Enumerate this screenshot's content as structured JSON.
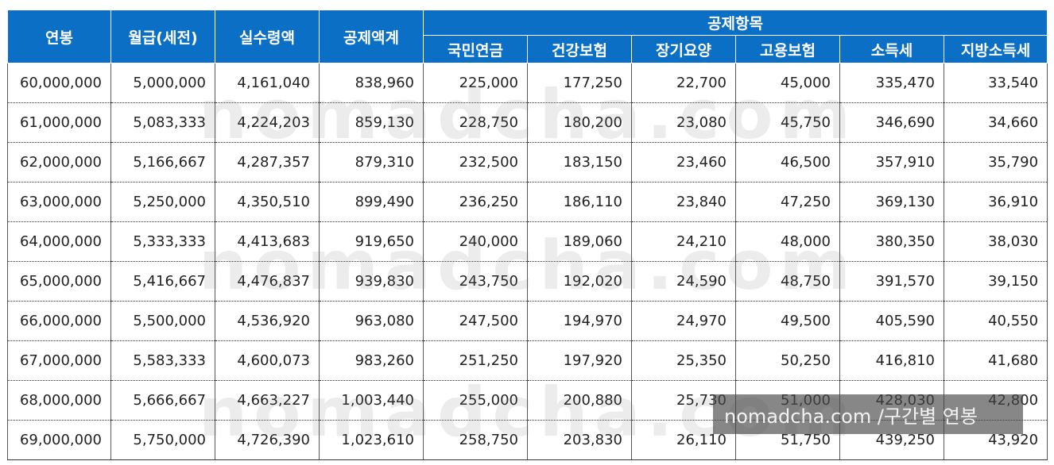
{
  "header": {
    "group_label": "공제항목",
    "columns": [
      "연봉",
      "월급(세전)",
      "실수령액",
      "공제액계"
    ],
    "sub_columns": [
      "국민연금",
      "건강보험",
      "장기요양",
      "고용보험",
      "소득세",
      "지방소득세"
    ]
  },
  "rows": [
    [
      "60,000,000",
      "5,000,000",
      "4,161,040",
      "838,960",
      "225,000",
      "177,250",
      "22,700",
      "45,000",
      "335,470",
      "33,540"
    ],
    [
      "61,000,000",
      "5,083,333",
      "4,224,203",
      "859,130",
      "228,750",
      "180,200",
      "23,080",
      "45,750",
      "346,690",
      "34,660"
    ],
    [
      "62,000,000",
      "5,166,667",
      "4,287,357",
      "879,310",
      "232,500",
      "183,150",
      "23,460",
      "46,500",
      "357,910",
      "35,790"
    ],
    [
      "63,000,000",
      "5,250,000",
      "4,350,510",
      "899,490",
      "236,250",
      "186,110",
      "23,840",
      "47,250",
      "369,130",
      "36,910"
    ],
    [
      "64,000,000",
      "5,333,333",
      "4,413,683",
      "919,650",
      "240,000",
      "189,060",
      "24,210",
      "48,000",
      "380,350",
      "38,030"
    ],
    [
      "65,000,000",
      "5,416,667",
      "4,476,837",
      "939,830",
      "243,750",
      "192,020",
      "24,590",
      "48,750",
      "391,570",
      "39,150"
    ],
    [
      "66,000,000",
      "5,500,000",
      "4,536,920",
      "963,080",
      "247,500",
      "194,970",
      "24,970",
      "49,500",
      "405,590",
      "40,550"
    ],
    [
      "67,000,000",
      "5,583,333",
      "4,600,073",
      "983,260",
      "251,250",
      "197,920",
      "25,350",
      "50,250",
      "416,810",
      "41,680"
    ],
    [
      "68,000,000",
      "5,666,667",
      "4,663,227",
      "1,003,440",
      "255,000",
      "200,880",
      "25,730",
      "51,000",
      "428,030",
      "42,800"
    ],
    [
      "69,000,000",
      "5,750,000",
      "4,726,390",
      "1,023,610",
      "258,750",
      "203,830",
      "26,110",
      "51,750",
      "439,250",
      "43,920"
    ]
  ],
  "watermark": "nomadcha.com",
  "caption": "nomadcha.com /구간별 연봉",
  "colors": {
    "header_bg": "#0b6fc6",
    "header_text": "#ffffff"
  }
}
